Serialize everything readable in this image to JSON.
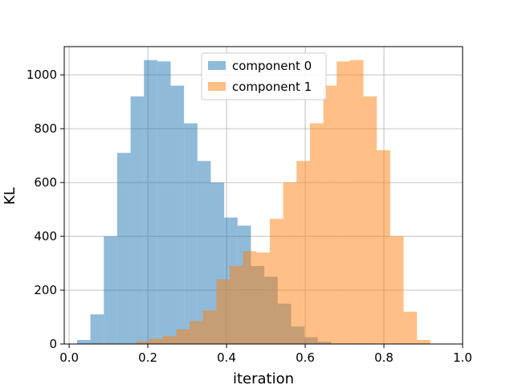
{
  "chart_data": {
    "type": "bar",
    "title": "",
    "xlabel": "iteration",
    "ylabel": "KL",
    "xlim": [
      -0.0125,
      1.0
    ],
    "ylim": [
      0,
      1105
    ],
    "grid": true,
    "legend_position": "upper-center",
    "x_ticks": [
      0.0,
      0.2,
      0.4,
      0.6,
      0.8,
      1.0
    ],
    "x_tick_labels": [
      "0.0",
      "0.2",
      "0.4",
      "0.6",
      "0.8",
      "1.0"
    ],
    "y_ticks": [
      0,
      200,
      400,
      600,
      800,
      1000
    ],
    "y_tick_labels": [
      "0",
      "200",
      "400",
      "600",
      "800",
      "1000"
    ],
    "series": [
      {
        "name": "component 0",
        "color": "#1f77b4",
        "opacity": 0.5,
        "bin_edges": [
          0.02,
          0.054,
          0.088,
          0.122,
          0.156,
          0.19,
          0.224,
          0.258,
          0.292,
          0.326,
          0.36,
          0.394,
          0.428,
          0.462,
          0.496,
          0.53,
          0.564,
          0.598,
          0.632,
          0.666
        ],
        "counts": [
          15,
          110,
          400,
          710,
          920,
          1055,
          1050,
          960,
          820,
          680,
          600,
          470,
          440,
          290,
          250,
          150,
          65,
          25,
          8
        ]
      },
      {
        "name": "component 1",
        "color": "#ff7f0e",
        "opacity": 0.5,
        "bin_edges": [
          0.17,
          0.204,
          0.238,
          0.272,
          0.306,
          0.34,
          0.374,
          0.408,
          0.442,
          0.476,
          0.51,
          0.544,
          0.578,
          0.612,
          0.646,
          0.68,
          0.714,
          0.748,
          0.782,
          0.816,
          0.85,
          0.884,
          0.918,
          0.952,
          0.986
        ],
        "counts": [
          10,
          20,
          30,
          55,
          85,
          125,
          240,
          290,
          345,
          340,
          465,
          600,
          680,
          820,
          960,
          1050,
          1055,
          920,
          720,
          400,
          120,
          15,
          0,
          0
        ]
      }
    ]
  }
}
